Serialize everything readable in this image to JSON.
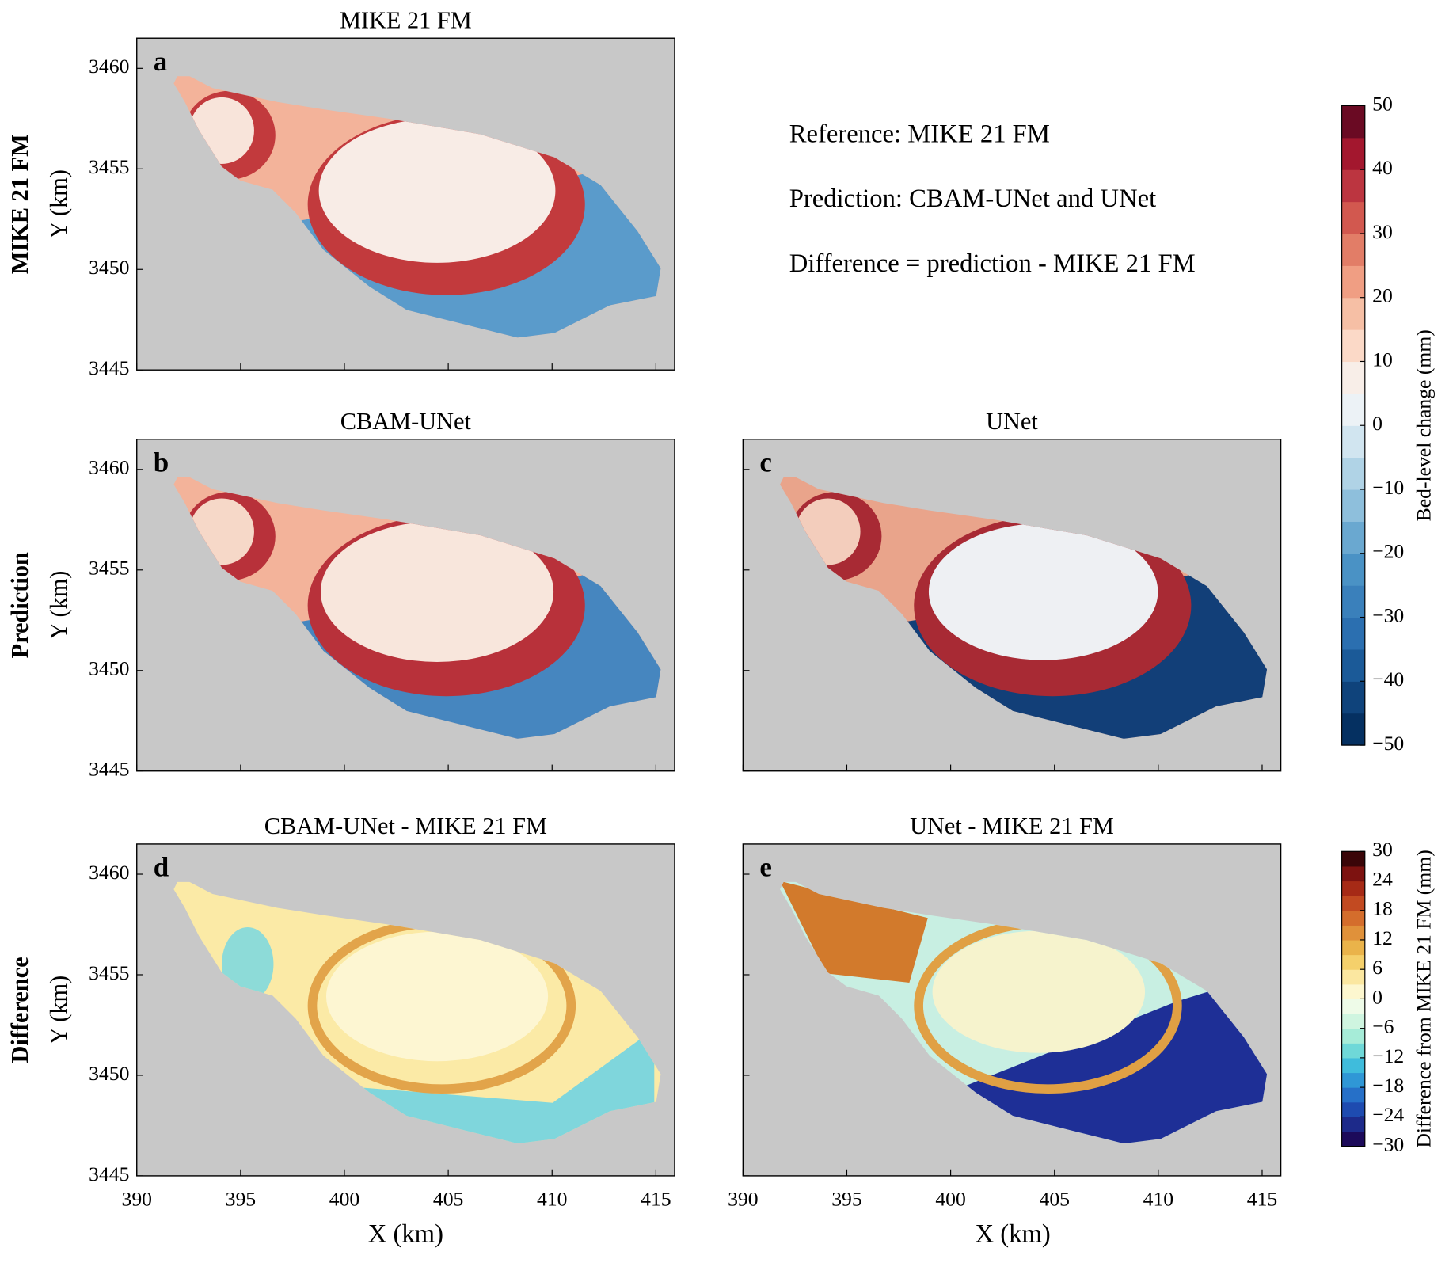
{
  "chart_data": {
    "type": "contour_map",
    "xlabel": "X (km)",
    "ylabel": "Y (km)",
    "xlim": [
      390,
      415.9
    ],
    "ylim": [
      3445,
      3461.5
    ],
    "xticks": [
      390,
      395,
      400,
      405,
      410,
      415
    ],
    "yticks": [
      3445,
      3450,
      3455,
      3460
    ],
    "rows": [
      "MIKE 21 FM",
      "Prediction",
      "Difference"
    ],
    "notes": [
      "Reference: MIKE 21 FM",
      "Prediction: CBAM-UNet and UNet",
      "Difference = prediction - MIKE 21 FM"
    ],
    "panels": [
      {
        "title": "MIKE 21 FM",
        "letter": "a",
        "row": 0,
        "col": 0,
        "xtick_labels": false,
        "ytick_labels": true
      },
      {
        "title": "CBAM-UNet",
        "letter": "b",
        "row": 1,
        "col": 0,
        "xtick_labels": false,
        "ytick_labels": true
      },
      {
        "title": "UNet",
        "letter": "c",
        "row": 1,
        "col": 1,
        "xtick_labels": false,
        "ytick_labels": false
      },
      {
        "title": "CBAM-UNet - MIKE 21 FM",
        "letter": "d",
        "row": 2,
        "col": 0,
        "xtick_labels": true,
        "ytick_labels": true
      },
      {
        "title": "UNet - MIKE 21 FM",
        "letter": "e",
        "row": 2,
        "col": 1,
        "xtick_labels": true,
        "ytick_labels": false
      }
    ],
    "colorbars": [
      {
        "label": "Bed-level change (mm)",
        "lim": [
          -50,
          50
        ],
        "ticks": [
          {
            "value": -50,
            "label": "−50"
          },
          {
            "value": -40,
            "label": "−40"
          },
          {
            "value": -30,
            "label": "−30"
          },
          {
            "value": -20,
            "label": "−20"
          },
          {
            "value": -10,
            "label": "−10"
          },
          0,
          10,
          20,
          30,
          40,
          50
        ],
        "colors": [
          "#053061",
          "#0f437b",
          "#1b5a98",
          "#2b6fb0",
          "#3a80bb",
          "#4a92c5",
          "#6aa8d0",
          "#8ebfdc",
          "#b0d3e6",
          "#d1e5f0",
          "#ecf2f6",
          "#f8eee8",
          "#fbd9c7",
          "#f6bfa5",
          "#f09e83",
          "#e27d67",
          "#d2584f",
          "#bc3540",
          "#a3172e",
          "#6a0a23"
        ]
      },
      {
        "label": "Difference from MIKE 21 FM (mm)",
        "lim": [
          -30,
          30
        ],
        "ticks": [
          {
            "value": -30,
            "label": "−30"
          },
          {
            "value": -24,
            "label": "−24"
          },
          {
            "value": -18,
            "label": "−18"
          },
          {
            "value": -12,
            "label": "−12"
          },
          {
            "value": -6,
            "label": "−6"
          },
          0,
          6,
          12,
          18,
          24,
          30
        ],
        "colors": [
          "#1c0a5a",
          "#1d2a8a",
          "#1e4bb0",
          "#2670c8",
          "#2f97d6",
          "#3fbcdc",
          "#6fd8d8",
          "#a6ecd8",
          "#cff5e0",
          "#eefbe8",
          "#fdf7cf",
          "#fbe7a0",
          "#f5d06b",
          "#eab34a",
          "#e0913a",
          "#d46d2c",
          "#c24a21",
          "#a62a16",
          "#7d1210",
          "#3a0508"
        ]
      }
    ]
  }
}
